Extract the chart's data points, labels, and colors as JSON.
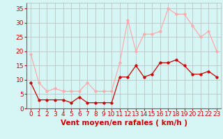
{
  "hours": [
    0,
    1,
    2,
    3,
    4,
    5,
    6,
    7,
    8,
    9,
    10,
    11,
    12,
    13,
    14,
    15,
    16,
    17,
    18,
    19,
    20,
    21,
    22,
    23
  ],
  "wind_avg": [
    9,
    3,
    3,
    3,
    3,
    2,
    4,
    2,
    2,
    2,
    2,
    11,
    11,
    15,
    11,
    12,
    16,
    16,
    17,
    15,
    12,
    12,
    13,
    11
  ],
  "wind_gust": [
    19,
    9,
    6,
    7,
    6,
    6,
    6,
    9,
    6,
    6,
    6,
    16,
    31,
    20,
    26,
    26,
    27,
    35,
    33,
    33,
    29,
    25,
    27,
    20
  ],
  "color_avg": "#cc0000",
  "color_gust": "#ffaaaa",
  "bg_color": "#d6f5f5",
  "grid_color": "#bbbbbb",
  "xlabel": "Vent moyen/en rafales ( km/h )",
  "xlabel_color": "#cc0000",
  "xlabel_fontsize": 7.5,
  "ylabel_ticks": [
    0,
    5,
    10,
    15,
    20,
    25,
    30,
    35
  ],
  "xlim": [
    -0.5,
    23.5
  ],
  "ylim": [
    0,
    37
  ],
  "tick_color": "#cc0000",
  "tick_fontsize": 6.5
}
